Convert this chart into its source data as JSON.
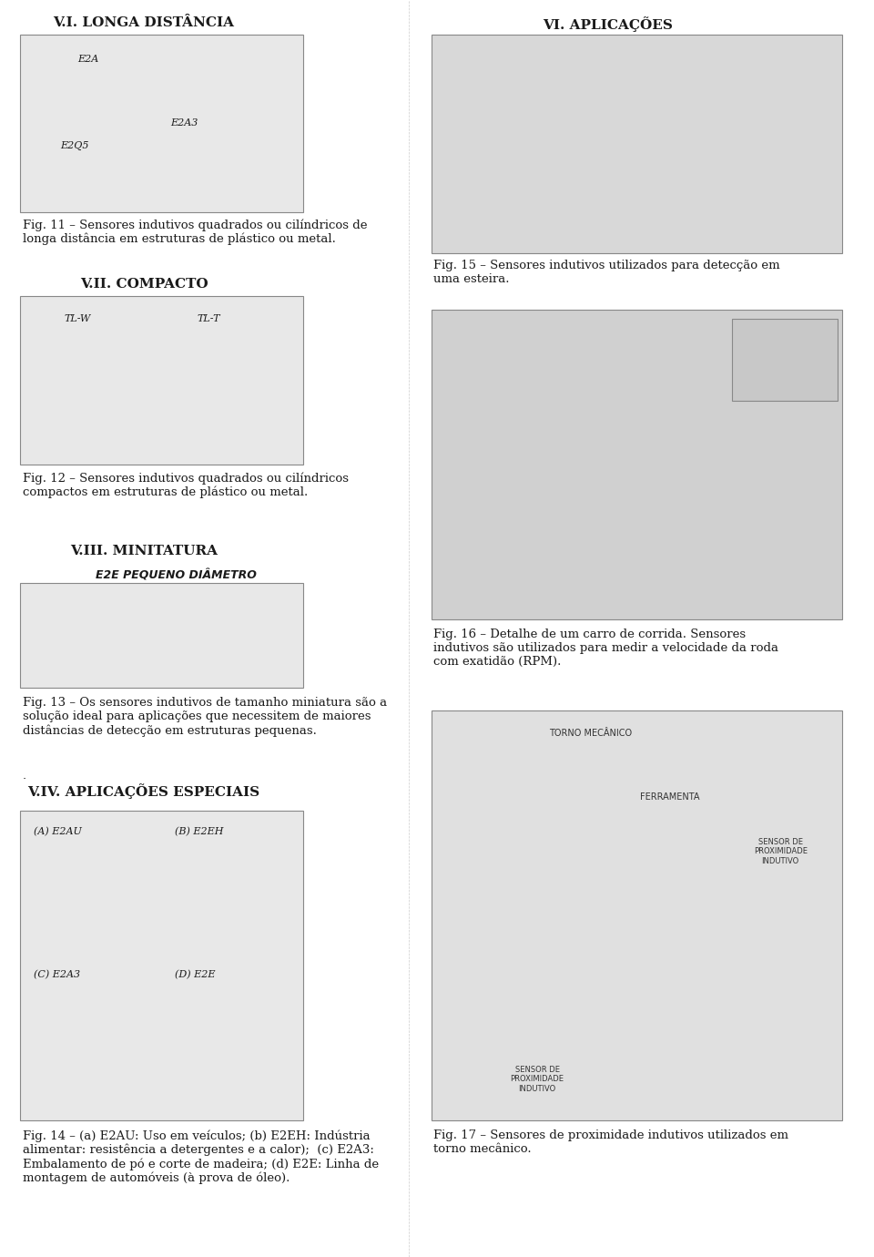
{
  "bg_color": "#ffffff",
  "title_left": "V.I. LONGA DISTÂNCIA",
  "title_right": "VI. APLICAÇÕES",
  "fig11_caption": "Fig. 11 – Sensores indutivos quadrados ou cilíndricos de\nlonga distância em estruturas de plástico ou metal.",
  "fig12_caption": "Fig. 12 – Sensores indutivos quadrados ou cilíndricos\ncompactos em estruturas de plástico ou metal.",
  "fig13_caption": "Fig. 13 – Os sensores indutivos de tamanho miniatura são a\nsolução ideal para aplicações que necessitem de maiores\ndistâncias de detecção em estruturas pequenas.",
  "fig14_caption": "Fig. 14 – (a) E2AU: Uso em veículos; (b) E2EH: Indústria\nalimentar: resistência a detergentes e a calor);  (c) E2A3:\nEmbalamento de pó e corte de madeira; (d) E2E: Linha de\nmontagem de automóveis (à prova de óleo).",
  "fig15_caption": "Fig. 15 – Sensores indutivos utilizados para detecção em\numa esteira.",
  "fig16_caption": "Fig. 16 – Detalhe de um carro de corrida. Sensores\nindutivos são utilizados para medir a velocidade da roda\ncom exatidão (RPM).",
  "fig17_caption": "Fig. 17 – Sensores de proximidade indutivos utilizados em\ntorno mecânico.",
  "sec_compact": "V.II. COMPACTO",
  "sec_miniatura": "V.III. MINITATURA",
  "sec_aplicacoes": "V.IV. APLICAÇÕES ESPECIAIS",
  "label_e2a": "E2A",
  "label_e2q5": "E2Q5",
  "label_e2a3": "E2A3",
  "label_tl_w": "TL-W",
  "label_tl_t": "TL-T",
  "label_e2e_small": "E2E PEQUENO DIÂMETRO",
  "label_a_e2au": "(A) E2AU",
  "label_b_e2eh": "(B) E2EH",
  "label_c_e2a3": "(C) E2A3",
  "label_d_e2e": "(D) E2E",
  "text_color": "#1a1a1a",
  "caption_fontsize": 9.5,
  "heading_fontsize": 11,
  "label_fontsize": 8
}
